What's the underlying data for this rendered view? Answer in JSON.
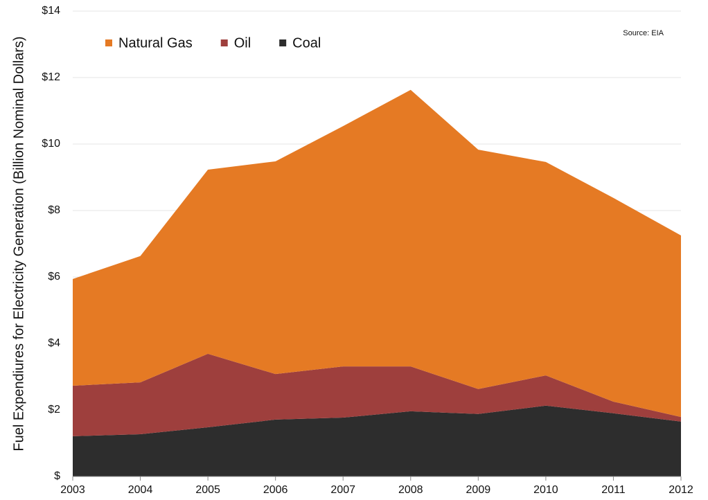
{
  "chart_data": {
    "type": "stacked_area",
    "y_label": "Fuel Expendiures for Electricity Generation (Billion Nominal Dollars)",
    "annotation": "Source: EIA",
    "categories": [
      "2003",
      "2004",
      "2005",
      "2006",
      "2007",
      "2008",
      "2009",
      "2010",
      "2011",
      "2012"
    ],
    "series": [
      {
        "name": "Natural Gas",
        "color": "#e57a24",
        "values": [
          3.21,
          3.8,
          5.54,
          6.4,
          7.23,
          8.32,
          7.2,
          6.42,
          6.13,
          5.46
        ]
      },
      {
        "name": "Oil",
        "color": "#9e3f3d",
        "values": [
          1.52,
          1.56,
          2.21,
          1.37,
          1.54,
          1.35,
          0.75,
          0.91,
          0.35,
          0.14
        ]
      },
      {
        "name": "Coal",
        "color": "#2d2d2d",
        "values": [
          1.21,
          1.27,
          1.48,
          1.71,
          1.77,
          1.96,
          1.88,
          2.13,
          1.9,
          1.65
        ]
      }
    ],
    "ylim": [
      0,
      14
    ],
    "yticks": [
      {
        "value": 0,
        "label": "$"
      },
      {
        "value": 2,
        "label": "$2"
      },
      {
        "value": 4,
        "label": "$4"
      },
      {
        "value": 6,
        "label": "$6"
      },
      {
        "value": 8,
        "label": "$8"
      },
      {
        "value": 10,
        "label": "$10"
      },
      {
        "value": 12,
        "label": "$12"
      },
      {
        "value": 14,
        "label": "$14"
      }
    ],
    "grid": true
  }
}
